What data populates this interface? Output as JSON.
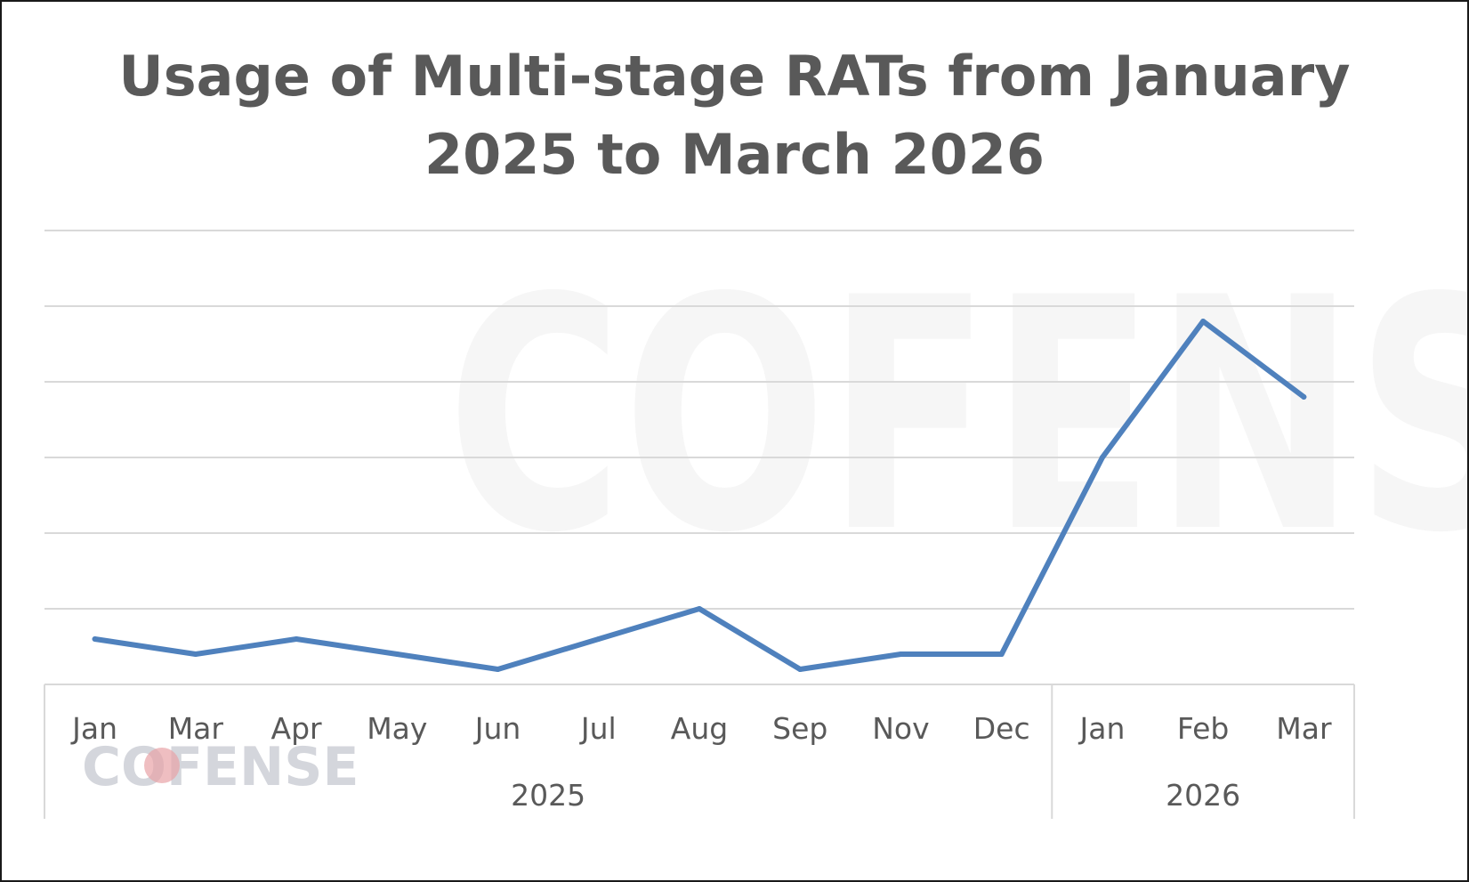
{
  "chart_data": {
    "type": "line",
    "title_lines": [
      "Usage of Multi-stage RATs from January",
      "2025 to March 2026"
    ],
    "categories": [
      "Jan",
      "Mar",
      "Apr",
      "May",
      "Jun",
      "Jul",
      "Aug",
      "Sep",
      "Nov",
      "Dec",
      "Jan",
      "Feb",
      "Mar"
    ],
    "groups": [
      {
        "label": "2025",
        "start": 0,
        "end": 9
      },
      {
        "label": "2026",
        "start": 10,
        "end": 12
      }
    ],
    "series": [
      {
        "values": [
          0.6,
          0.4,
          0.6,
          0.4,
          0.2,
          0.6,
          1.0,
          0.2,
          0.4,
          0.4,
          3.0,
          4.8,
          3.8
        ]
      }
    ],
    "ylim": [
      0,
      6
    ],
    "yticks_shown": false,
    "grid": true,
    "legend": "none",
    "line_color": "#4f81bd",
    "grid_color": "#d9d9d9"
  },
  "watermark": {
    "big_text": "COFENSE",
    "logo_text": "COFENSE",
    "logo_accent": "#e8a2a6"
  }
}
